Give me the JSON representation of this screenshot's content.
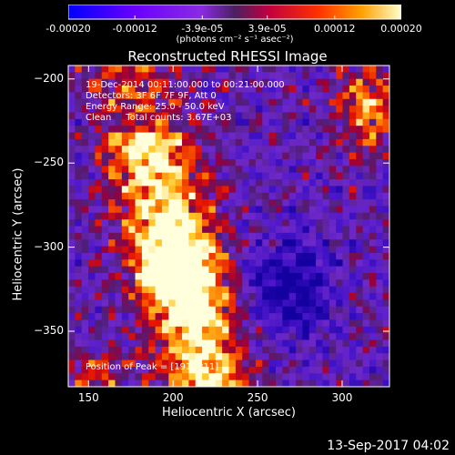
{
  "colorbar": {
    "tick_labels": [
      "-0.00020",
      "-0.00012",
      "-3.9e-05",
      "3.9e-05",
      "0.00012",
      "0.00020"
    ],
    "tick_values": [
      -0.0002,
      -0.00012,
      -3.9e-05,
      3.9e-05,
      0.00012,
      0.0002
    ],
    "range": [
      -0.0002,
      0.0002
    ],
    "units": "(photons cm⁻² s⁻¹ asec⁻²)"
  },
  "annotations": {
    "line1": "19-Dec-2014 00:11:00.000 to 00:21:00.000",
    "line2": "Detectors: 3F 6F 7F 9F, Att 0",
    "line3": "Energy Range: 25.0 - 50.0 keV",
    "line4": "Clean     Total counts: 3.67E+03",
    "peak": "Position of Peak = [191,-311]"
  },
  "footer": "13-Sep-2017 04:02",
  "chart_data": {
    "type": "heatmap",
    "title": "Reconstructed RHESSI Image",
    "xlabel": "Heliocentric X (arcsec)",
    "ylabel": "Heliocentric Y (arcsec)",
    "xlim": [
      138,
      328
    ],
    "ylim": [
      -383,
      -192
    ],
    "x_ticks": [
      150,
      200,
      250,
      300
    ],
    "y_ticks": [
      -200,
      -250,
      -300,
      -350
    ],
    "x_tick_labels": [
      "150",
      "200",
      "250",
      "300"
    ],
    "y_tick_labels": [
      "-200",
      "-250",
      "-300",
      "-350"
    ],
    "peak_position": [
      191,
      -311
    ],
    "colormap": [
      "#0000ff",
      "#5a00ff",
      "#8a2be2",
      "#6a2a8e",
      "#b00030",
      "#ff0000",
      "#ff7a00",
      "#ffd000",
      "#ffffff"
    ],
    "value_range": [
      -0.0002,
      0.0002
    ]
  }
}
